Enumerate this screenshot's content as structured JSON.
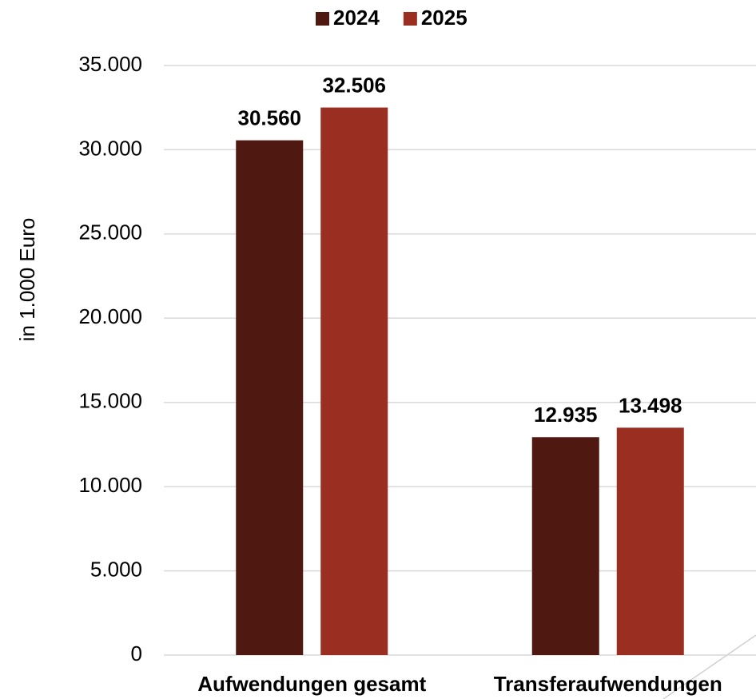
{
  "chart_data": {
    "type": "bar",
    "y_label": "in 1.000 Euro",
    "categories": [
      "Aufwendungen gesamt",
      "Transferaufwendungen"
    ],
    "series": [
      {
        "name": "2024",
        "color": "#4f1811",
        "values": [
          30560,
          12935
        ],
        "value_labels": [
          "30.560",
          "12.935"
        ]
      },
      {
        "name": "2025",
        "color": "#9a2e21",
        "values": [
          32506,
          13498
        ],
        "value_labels": [
          "32.506",
          "13.498"
        ]
      }
    ],
    "ylim": [
      0,
      35000
    ],
    "yticks": [
      0,
      {
        "value": 5000,
        "label": "5.000"
      },
      {
        "value": 10000,
        "label": "10.000"
      },
      {
        "value": 15000,
        "label": "15.000"
      },
      {
        "value": 20000,
        "label": "20.000"
      },
      {
        "value": 25000,
        "label": "25.000"
      },
      {
        "value": 30000,
        "label": "30.000"
      },
      {
        "value": 35000,
        "label": "35.000"
      }
    ],
    "grid": true,
    "legend": "top"
  }
}
